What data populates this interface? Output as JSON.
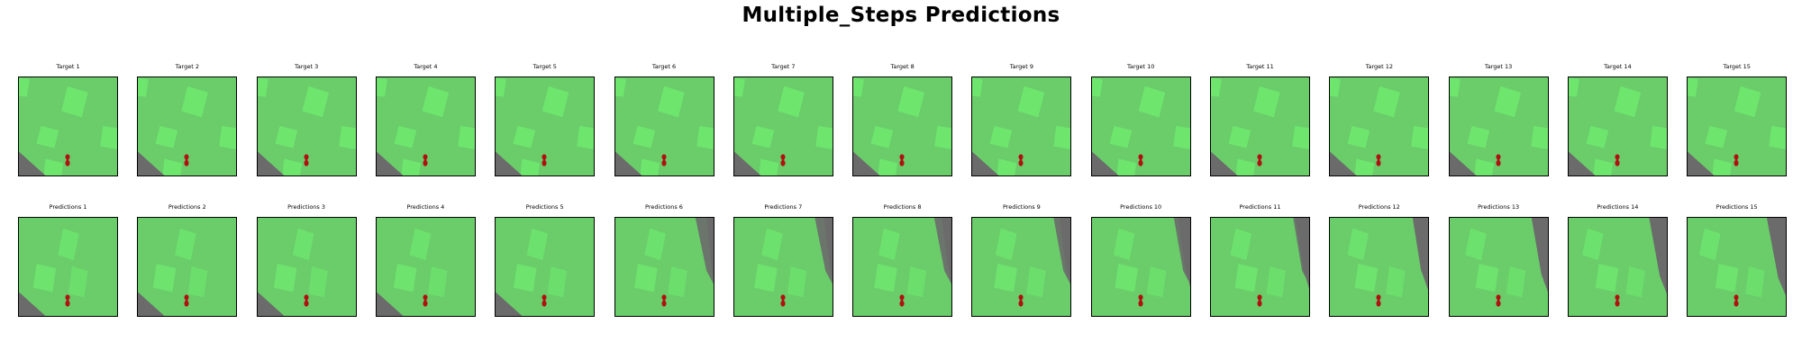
{
  "title": "Multiple_Steps Predictions",
  "colors": {
    "grass": "#6acd6a",
    "building": "#6ee66e",
    "road": "#6b6b6b",
    "agent": "#b01010"
  },
  "rows": [
    {
      "name": "targets",
      "labels": [
        "Target 1",
        "Target 2",
        "Target 3",
        "Target 4",
        "Target 5",
        "Target 6",
        "Target 7",
        "Target 8",
        "Target 9",
        "Target 10",
        "Target 11",
        "Target 12",
        "Target 13",
        "Target 14",
        "Target 15"
      ]
    },
    {
      "name": "predictions",
      "labels": [
        "Predictions 1",
        "Predictions 2",
        "Predictions 3",
        "Predictions 4",
        "Predictions 5",
        "Predictions 6",
        "Predictions 7",
        "Predictions 8",
        "Predictions 9",
        "Predictions 10",
        "Predictions 11",
        "Predictions 12",
        "Predictions 13",
        "Predictions 14",
        "Predictions 15"
      ]
    }
  ]
}
